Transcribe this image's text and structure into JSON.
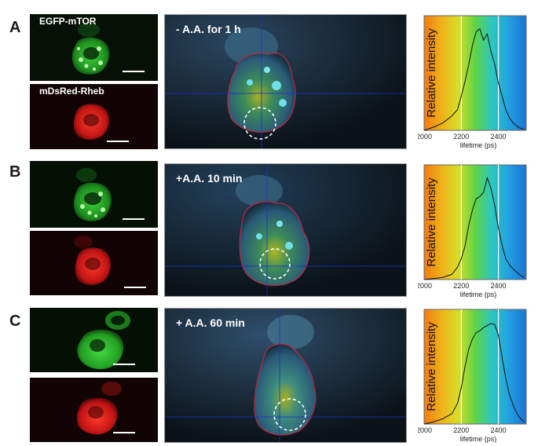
{
  "figure": {
    "rows": [
      {
        "letter": "A",
        "green_label": "EGFP-mTOR",
        "red_label": "mDsRed-Rheb",
        "condition": "- A.A. for 1 h",
        "histogram": {
          "ylabel": "Relative intensity",
          "xlabel": "lifetime (ps)",
          "ticks": [
            "2000",
            "2200",
            "2400"
          ]
        }
      },
      {
        "letter": "B",
        "green_label": "",
        "red_label": "",
        "condition": "+A.A. 10 min",
        "histogram": {
          "ylabel": "Relative intensity",
          "xlabel": "lifetime (ps)",
          "ticks": [
            "2000",
            "2200",
            "2400"
          ]
        }
      },
      {
        "letter": "C",
        "green_label": "",
        "red_label": "",
        "condition": "+ A.A. 60 min",
        "histogram": {
          "ylabel": "Relative intensity",
          "xlabel": "lifetime (ps)",
          "ticks": [
            "2000",
            "2200",
            "2400"
          ]
        }
      }
    ],
    "colors": {
      "green_channel": "#3cd23c",
      "red_channel": "#e01a1a",
      "cell_outline": "#c0283a",
      "crosshair": "#1a2fd0",
      "colorbar_stops": [
        "#f07b10",
        "#f0b019",
        "#d7de28",
        "#5fd446",
        "#2cc6c3",
        "#219fe0",
        "#1e73d2"
      ]
    }
  },
  "chart_data": [
    {
      "type": "line",
      "title": "",
      "xlabel": "lifetime (ps)",
      "ylabel": "Relative intensity",
      "xlim": [
        2000,
        2550
      ],
      "ylim": [
        0,
        1
      ],
      "xticks": [
        2000,
        2200,
        2400
      ],
      "markers": [
        2200,
        2400
      ],
      "x": [
        2000,
        2050,
        2100,
        2150,
        2180,
        2200,
        2220,
        2240,
        2260,
        2280,
        2300,
        2320,
        2340,
        2360,
        2380,
        2400,
        2420,
        2440,
        2460,
        2480,
        2500,
        2520,
        2540
      ],
      "values": [
        0.0,
        0.03,
        0.07,
        0.14,
        0.2,
        0.33,
        0.47,
        0.63,
        0.82,
        0.95,
        0.98,
        0.87,
        0.93,
        0.76,
        0.64,
        0.46,
        0.33,
        0.2,
        0.12,
        0.07,
        0.04,
        0.02,
        0.01
      ]
    },
    {
      "type": "line",
      "title": "",
      "xlabel": "lifetime (ps)",
      "ylabel": "Relative intensity",
      "xlim": [
        2000,
        2550
      ],
      "ylim": [
        0,
        1
      ],
      "xticks": [
        2000,
        2200,
        2400
      ],
      "markers": [
        2200,
        2400
      ],
      "x": [
        2000,
        2050,
        2100,
        2150,
        2180,
        2200,
        2220,
        2240,
        2260,
        2280,
        2300,
        2320,
        2340,
        2360,
        2380,
        2400,
        2420,
        2440,
        2460,
        2480,
        2500,
        2520,
        2540
      ],
      "values": [
        0.0,
        0.01,
        0.02,
        0.05,
        0.12,
        0.2,
        0.32,
        0.52,
        0.67,
        0.78,
        0.8,
        0.84,
        0.98,
        0.88,
        0.72,
        0.5,
        0.33,
        0.2,
        0.14,
        0.1,
        0.07,
        0.04,
        0.02
      ]
    },
    {
      "type": "line",
      "title": "",
      "xlabel": "lifetime (ps)",
      "ylabel": "Relative intensity",
      "xlim": [
        2000,
        2550
      ],
      "ylim": [
        0,
        1
      ],
      "xticks": [
        2000,
        2200,
        2400
      ],
      "markers": [
        2200,
        2400
      ],
      "x": [
        2000,
        2050,
        2100,
        2150,
        2180,
        2200,
        2220,
        2240,
        2260,
        2280,
        2300,
        2320,
        2340,
        2360,
        2380,
        2400,
        2420,
        2440,
        2460,
        2480,
        2500,
        2520,
        2540
      ],
      "values": [
        0.0,
        0.02,
        0.05,
        0.1,
        0.2,
        0.35,
        0.55,
        0.72,
        0.82,
        0.88,
        0.9,
        0.93,
        0.95,
        0.97,
        0.96,
        0.86,
        0.64,
        0.44,
        0.28,
        0.18,
        0.1,
        0.05,
        0.02
      ]
    }
  ]
}
